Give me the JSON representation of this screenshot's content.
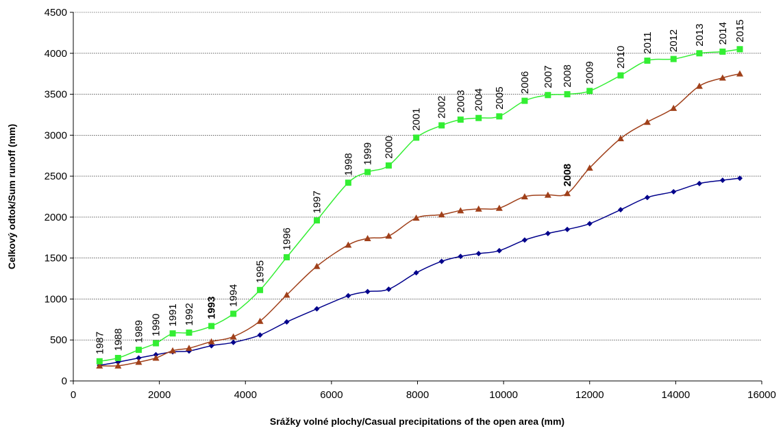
{
  "chart_data": {
    "type": "line",
    "title": "",
    "xlabel": "Srážky volné plochy/Casual precipitations of the open area (mm)",
    "ylabel": "Celkový odtok/Sum runoff (mm)",
    "xlim": [
      0,
      16000
    ],
    "ylim": [
      0,
      4500
    ],
    "x_ticks": [
      0,
      2000,
      4000,
      6000,
      8000,
      10000,
      12000,
      14000,
      16000
    ],
    "y_ticks": [
      0,
      500,
      1000,
      1500,
      2000,
      2500,
      3000,
      3500,
      4000,
      4500
    ],
    "grid": "horizontal",
    "legend": "none",
    "x": [
      610,
      1040,
      1520,
      1920,
      2310,
      2690,
      3210,
      3720,
      4340,
      4960,
      5660,
      6390,
      6840,
      7330,
      7970,
      8560,
      9000,
      9420,
      9900,
      10490,
      11030,
      11480,
      12000,
      12720,
      13340,
      13950,
      14550,
      15090,
      15490
    ],
    "series": [
      {
        "color": "#00008B",
        "marker": "diamond",
        "values": [
          190,
          230,
          280,
          320,
          355,
          365,
          430,
          470,
          560,
          720,
          880,
          1040,
          1090,
          1120,
          1320,
          1460,
          1520,
          1555,
          1590,
          1720,
          1800,
          1850,
          1920,
          2090,
          2240,
          2310,
          2410,
          2450,
          2475
        ]
      },
      {
        "color": "#A0401A",
        "marker": "triangle",
        "values": [
          185,
          185,
          230,
          280,
          370,
          400,
          480,
          540,
          730,
          1050,
          1400,
          1660,
          1740,
          1770,
          1990,
          2030,
          2080,
          2100,
          2110,
          2250,
          2270,
          2290,
          2600,
          2960,
          3160,
          3330,
          3600,
          3700,
          3750
        ]
      },
      {
        "color": "#33EE33",
        "marker": "square",
        "values": [
          240,
          280,
          380,
          460,
          580,
          590,
          670,
          820,
          1110,
          1510,
          1960,
          2420,
          2550,
          2630,
          2970,
          3120,
          3190,
          3210,
          3230,
          3420,
          3490,
          3500,
          3540,
          3730,
          3910,
          3930,
          4000,
          4020,
          4050
        ]
      }
    ],
    "annotations": [
      {
        "text": "1987",
        "x": 610,
        "y": 240,
        "bold": false
      },
      {
        "text": "1988",
        "x": 1040,
        "y": 280,
        "bold": false
      },
      {
        "text": "1989",
        "x": 1520,
        "y": 380,
        "bold": false
      },
      {
        "text": "1990",
        "x": 1920,
        "y": 460,
        "bold": false
      },
      {
        "text": "1991",
        "x": 2310,
        "y": 580,
        "bold": false
      },
      {
        "text": "1992",
        "x": 2690,
        "y": 590,
        "bold": false
      },
      {
        "text": "1993",
        "x": 3210,
        "y": 670,
        "bold": true
      },
      {
        "text": "1994",
        "x": 3720,
        "y": 820,
        "bold": false
      },
      {
        "text": "1995",
        "x": 4340,
        "y": 1110,
        "bold": false
      },
      {
        "text": "1996",
        "x": 4960,
        "y": 1510,
        "bold": false
      },
      {
        "text": "1997",
        "x": 5660,
        "y": 1960,
        "bold": false
      },
      {
        "text": "1998",
        "x": 6390,
        "y": 2420,
        "bold": false
      },
      {
        "text": "1999",
        "x": 6840,
        "y": 2550,
        "bold": false
      },
      {
        "text": "2000",
        "x": 7330,
        "y": 2630,
        "bold": false
      },
      {
        "text": "2001",
        "x": 7970,
        "y": 2970,
        "bold": false
      },
      {
        "text": "2002",
        "x": 8560,
        "y": 3120,
        "bold": false
      },
      {
        "text": "2003",
        "x": 9000,
        "y": 3190,
        "bold": false
      },
      {
        "text": "2004",
        "x": 9420,
        "y": 3210,
        "bold": false
      },
      {
        "text": "2005",
        "x": 9900,
        "y": 3230,
        "bold": false
      },
      {
        "text": "2006",
        "x": 10490,
        "y": 3420,
        "bold": false
      },
      {
        "text": "2007",
        "x": 11030,
        "y": 3490,
        "bold": false
      },
      {
        "text": "2008",
        "x": 11480,
        "y": 3500,
        "bold": false
      },
      {
        "text": "2009",
        "x": 12000,
        "y": 3540,
        "bold": false
      },
      {
        "text": "2010",
        "x": 12720,
        "y": 3730,
        "bold": false
      },
      {
        "text": "2011",
        "x": 13340,
        "y": 3910,
        "bold": false
      },
      {
        "text": "2012",
        "x": 13950,
        "y": 3930,
        "bold": false
      },
      {
        "text": "2013",
        "x": 14550,
        "y": 4000,
        "bold": false
      },
      {
        "text": "2014",
        "x": 15090,
        "y": 4020,
        "bold": false
      },
      {
        "text": "2015",
        "x": 15490,
        "y": 4050,
        "bold": false
      },
      {
        "text": "2008",
        "x": 11480,
        "y": 2290,
        "bold": true
      }
    ]
  }
}
